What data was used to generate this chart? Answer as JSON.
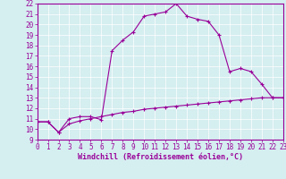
{
  "xlabel": "Windchill (Refroidissement éolien,°C)",
  "x": [
    0,
    1,
    2,
    3,
    4,
    5,
    6,
    7,
    8,
    9,
    10,
    11,
    12,
    13,
    14,
    15,
    16,
    17,
    18,
    19,
    20,
    21,
    22,
    23
  ],
  "temp_curve": [
    10.7,
    10.7,
    9.7,
    11.0,
    11.2,
    11.2,
    10.9,
    17.5,
    18.5,
    19.3,
    20.8,
    21.0,
    21.2,
    22.0,
    20.8,
    20.5,
    20.3,
    19.0,
    15.5,
    15.8,
    15.5,
    14.3,
    13.0,
    13.0
  ],
  "wind_curve": [
    10.7,
    10.7,
    9.7,
    10.5,
    10.8,
    11.0,
    11.2,
    11.4,
    11.6,
    11.7,
    11.9,
    12.0,
    12.1,
    12.2,
    12.3,
    12.4,
    12.5,
    12.6,
    12.7,
    12.8,
    12.9,
    13.0,
    13.0,
    13.0
  ],
  "line_color": "#990099",
  "bg_color": "#d5eef0",
  "grid_color": "#ffffff",
  "ylim": [
    9,
    22
  ],
  "xlim": [
    0,
    23
  ],
  "yticks": [
    9,
    10,
    11,
    12,
    13,
    14,
    15,
    16,
    17,
    18,
    19,
    20,
    21,
    22
  ],
  "xticks": [
    0,
    1,
    2,
    3,
    4,
    5,
    6,
    7,
    8,
    9,
    10,
    11,
    12,
    13,
    14,
    15,
    16,
    17,
    18,
    19,
    20,
    21,
    22,
    23
  ],
  "tick_fontsize": 5.5,
  "xlabel_fontsize": 6.0
}
